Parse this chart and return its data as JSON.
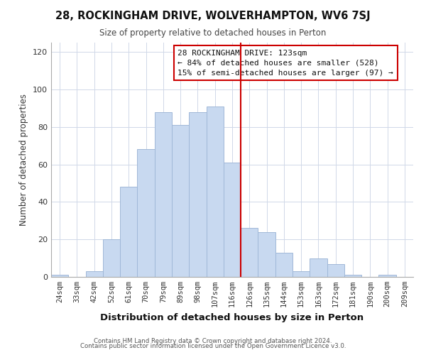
{
  "title": "28, ROCKINGHAM DRIVE, WOLVERHAMPTON, WV6 7SJ",
  "subtitle": "Size of property relative to detached houses in Perton",
  "xlabel": "Distribution of detached houses by size in Perton",
  "ylabel": "Number of detached properties",
  "bar_labels": [
    "24sqm",
    "33sqm",
    "42sqm",
    "52sqm",
    "61sqm",
    "70sqm",
    "79sqm",
    "89sqm",
    "98sqm",
    "107sqm",
    "116sqm",
    "126sqm",
    "135sqm",
    "144sqm",
    "153sqm",
    "163sqm",
    "172sqm",
    "181sqm",
    "190sqm",
    "200sqm",
    "209sqm"
  ],
  "bar_values": [
    1,
    0,
    3,
    20,
    48,
    68,
    88,
    81,
    88,
    91,
    61,
    26,
    24,
    13,
    3,
    10,
    7,
    1,
    0,
    1,
    0
  ],
  "bar_color": "#c8d9f0",
  "bar_edge_color": "#a0b8d8",
  "vline_x": 10.5,
  "vline_color": "#cc0000",
  "annotation_text": "28 ROCKINGHAM DRIVE: 123sqm\n← 84% of detached houses are smaller (528)\n15% of semi-detached houses are larger (97) →",
  "annotation_box_edge": "#cc0000",
  "annotation_box_face": "#ffffff",
  "ylim": [
    0,
    125
  ],
  "yticks": [
    0,
    20,
    40,
    60,
    80,
    100,
    120
  ],
  "footer_line1": "Contains HM Land Registry data © Crown copyright and database right 2024.",
  "footer_line2": "Contains public sector information licensed under the Open Government Licence v3.0.",
  "background_color": "#ffffff",
  "grid_color": "#d0d8e8"
}
